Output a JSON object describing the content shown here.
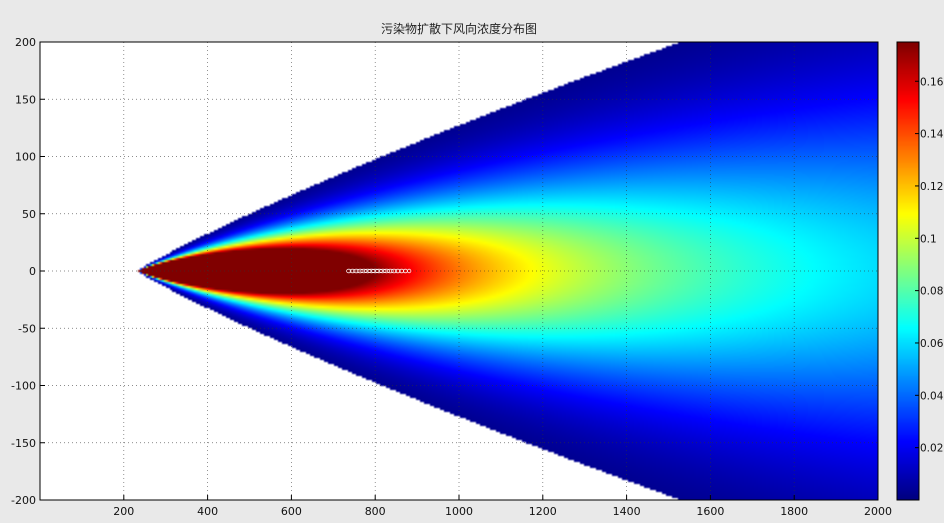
{
  "chart_data": {
    "type": "heatmap",
    "title": "污染物扩散下风向浓度分布图",
    "xlabel": "",
    "ylabel": "",
    "xlim": [
      0,
      2000
    ],
    "ylim": [
      -200,
      200
    ],
    "x_ticks": [
      200,
      400,
      600,
      800,
      1000,
      1200,
      1400,
      1600,
      1800,
      2000
    ],
    "y_ticks": [
      200,
      150,
      100,
      50,
      0,
      -50,
      -100,
      -150,
      -200
    ],
    "colorbar": {
      "min": 0,
      "max": 0.175,
      "ticks": [
        0.02,
        0.04,
        0.06,
        0.08,
        0.1,
        0.12,
        0.14,
        0.16
      ],
      "tick_labels": [
        "0.02",
        "0.04",
        "0.06",
        "0.08",
        "0.1",
        "0.12",
        "0.14",
        "0.16"
      ],
      "colormap": "jet"
    },
    "peak": {
      "x": 800,
      "y": 0,
      "value": 0.175
    },
    "plume_edge_x": 230,
    "grid": true,
    "colors": {
      "low": "#00008f",
      "mid": "#7fff7f",
      "high": "#800000",
      "background": "#ffffff",
      "frame": "#e9e9e9"
    }
  }
}
